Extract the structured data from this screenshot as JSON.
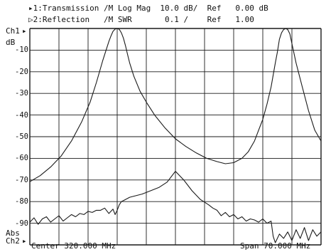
{
  "colors": {
    "trace": "#1a1a1a",
    "grid": "#1a1a1a",
    "background": "#ffffff"
  },
  "header": {
    "line1": "▸1:Transmission /M Log Mag  10.0 dB/  Ref   0.00 dB",
    "line2": "▷2:Reflection   /M SWR       0.1 /    Ref   1.00"
  },
  "labels": {
    "ch1": "Ch1",
    "ch1_marker": "▸",
    "unit": "dB",
    "abs": "Abs",
    "ch2": "Ch2",
    "ch2_marker": "▸",
    "center": "Center 320.000 MHz",
    "span": "Span 70.000 MHz"
  },
  "chart_data": {
    "type": "line",
    "title": "",
    "xlabel": "",
    "ylabel": "dB",
    "grid": true,
    "xlim": [
      285,
      355
    ],
    "ylim": [
      -100,
      0
    ],
    "y_ticks": [
      -10,
      -20,
      -30,
      -40,
      -50,
      -60,
      -70,
      -80,
      -90
    ],
    "series": [
      {
        "name": "1:Transmission",
        "x": [
          285,
          287.5,
          290,
          292.5,
          295,
          297.5,
          299.5,
          301,
          302.5,
          304,
          304.5,
          305,
          305.5,
          306,
          306.5,
          307,
          307.5,
          308,
          308.5,
          309,
          310,
          311.5,
          313,
          315,
          317.5,
          320,
          322.5,
          325,
          327.5,
          330,
          332,
          334,
          336,
          337.5,
          339,
          340,
          341,
          342,
          343,
          344,
          344.5,
          345,
          345.5,
          346,
          346.5,
          347,
          347.5,
          348,
          349,
          350.5,
          352,
          353.5,
          355
        ],
        "values": [
          -70.8,
          -68,
          -64,
          -59,
          -52,
          -43,
          -34,
          -25,
          -15,
          -6,
          -3.5,
          -1.3,
          -0.3,
          0,
          -0.4,
          -2,
          -4.5,
          -8,
          -12,
          -16,
          -22,
          -29,
          -34,
          -40,
          -46,
          -51,
          -54.5,
          -57.5,
          -60,
          -61.5,
          -62.5,
          -62,
          -60,
          -57,
          -52,
          -47,
          -42,
          -35,
          -27,
          -16,
          -11,
          -5,
          -2,
          -0.5,
          0,
          -0.5,
          -2.5,
          -7,
          -16,
          -27,
          -38,
          -47,
          -52
        ]
      },
      {
        "name": "2:Reflection",
        "x": [
          285,
          286,
          287,
          288,
          289,
          290,
          291,
          292,
          293,
          294,
          295,
          296,
          297,
          298,
          299,
          300,
          301,
          302,
          303,
          304,
          305,
          305.5,
          306,
          306.5,
          307,
          308,
          309,
          310,
          312,
          314,
          316,
          318,
          320,
          322,
          324,
          326,
          328,
          329,
          330,
          331,
          332,
          333,
          334,
          335,
          336,
          337,
          338,
          339,
          340,
          341,
          342,
          343,
          343.5,
          344,
          345,
          346,
          347,
          348,
          349,
          350,
          351,
          352,
          353,
          354,
          355
        ],
        "values": [
          -89.5,
          -87.5,
          -90.5,
          -88,
          -87,
          -89.5,
          -88,
          -86.5,
          -89,
          -87.5,
          -86,
          -87,
          -85.5,
          -86,
          -84.5,
          -85,
          -84,
          -84,
          -83,
          -85.5,
          -83.5,
          -86,
          -84,
          -81.5,
          -80,
          -79,
          -78,
          -77.5,
          -76.5,
          -75,
          -73.5,
          -71,
          -66,
          -70,
          -75,
          -79,
          -81.5,
          -83,
          -84,
          -86.5,
          -85,
          -87,
          -86,
          -88,
          -87,
          -89,
          -88,
          -88.5,
          -89.5,
          -88,
          -90,
          -89,
          -96,
          -99,
          -95,
          -97,
          -94,
          -98,
          -93,
          -97,
          -92,
          -98,
          -93,
          -96,
          -94
        ]
      }
    ]
  }
}
